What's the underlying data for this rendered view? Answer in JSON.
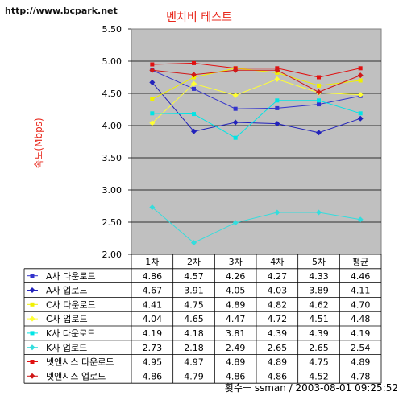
{
  "watermark": "http://www.bcpark.net",
  "footer": "횟수ㅡ ssman / 2003-08-01 09:25:52",
  "chart_data": {
    "type": "line",
    "title": "벤치비 테스트",
    "ylabel": "속도(Mbps)",
    "xlabel": "",
    "categories": [
      "1차",
      "2차",
      "3차",
      "4차",
      "5차",
      "평균"
    ],
    "ylim": [
      2.0,
      5.5
    ],
    "yticks": [
      "2.00",
      "2.50",
      "3.00",
      "3.50",
      "4.00",
      "4.50",
      "5.00",
      "5.50"
    ],
    "grid": true,
    "legend": "table-below",
    "plot_bg": "#c0c0c0",
    "series": [
      {
        "name": "A사 다운로드",
        "values": [
          4.86,
          4.57,
          4.26,
          4.27,
          4.33,
          4.46
        ],
        "color": "#3333cc",
        "marker": "square"
      },
      {
        "name": "A사 업로드",
        "values": [
          4.67,
          3.91,
          4.05,
          4.03,
          3.89,
          4.11
        ],
        "color": "#2222bb",
        "marker": "diamond"
      },
      {
        "name": "C사 다운로드",
        "values": [
          4.41,
          4.75,
          4.89,
          4.82,
          4.62,
          4.7
        ],
        "color": "#f0f000",
        "marker": "square"
      },
      {
        "name": "C사 업로드",
        "values": [
          4.04,
          4.65,
          4.47,
          4.72,
          4.51,
          4.48
        ],
        "color": "#ffff33",
        "marker": "diamond"
      },
      {
        "name": "K사 다운로드",
        "values": [
          4.19,
          4.18,
          3.81,
          4.39,
          4.39,
          4.19
        ],
        "color": "#00e5e5",
        "marker": "square"
      },
      {
        "name": "K사 업로드",
        "values": [
          2.73,
          2.18,
          2.49,
          2.65,
          2.65,
          2.54
        ],
        "color": "#33dddd",
        "marker": "diamond"
      },
      {
        "name": "넷앤시스 다운로드",
        "values": [
          4.95,
          4.97,
          4.89,
          4.89,
          4.75,
          4.89
        ],
        "color": "#e01010",
        "marker": "square"
      },
      {
        "name": "넷앤시스 업로드",
        "values": [
          4.86,
          4.79,
          4.86,
          4.86,
          4.52,
          4.78
        ],
        "color": "#d01818",
        "marker": "diamond"
      }
    ]
  }
}
